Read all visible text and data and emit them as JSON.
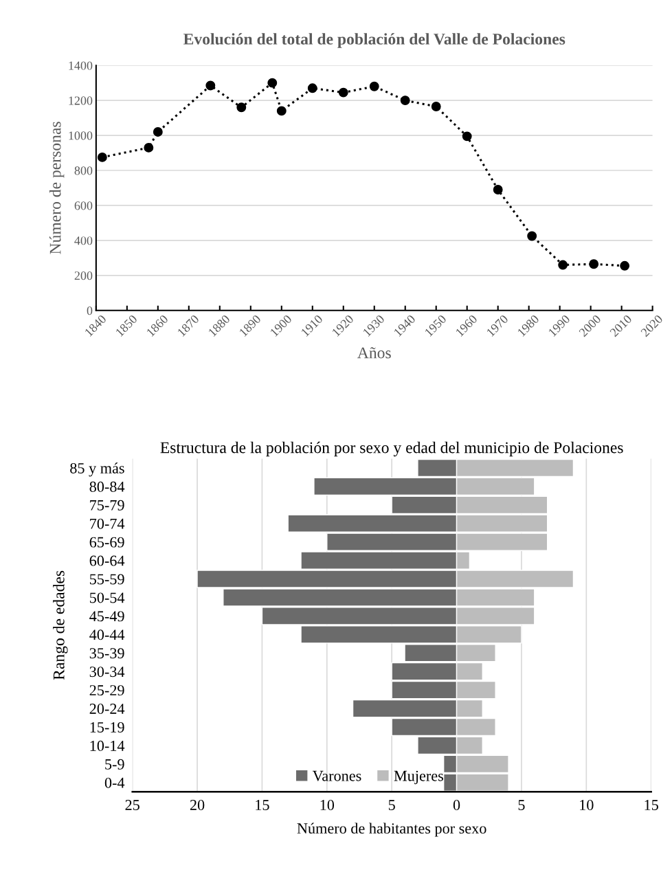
{
  "chart_data": [
    {
      "type": "line",
      "title": "Evolución del total de población del Valle de Polaciones",
      "xlabel": "Años",
      "ylabel": "Número de personas",
      "x": [
        1842,
        1857,
        1860,
        1877,
        1887,
        1897,
        1900,
        1910,
        1920,
        1930,
        1940,
        1950,
        1960,
        1970,
        1981,
        1991,
        2001,
        2011
      ],
      "series": [
        {
          "color": "#000000",
          "values": [
            875,
            930,
            1020,
            1285,
            1160,
            1300,
            1140,
            1270,
            1245,
            1280,
            1200,
            1165,
            995,
            690,
            425,
            260,
            265,
            255
          ]
        }
      ],
      "xlim": [
        1840,
        2020
      ],
      "xticks": [
        1840,
        1850,
        1860,
        1870,
        1880,
        1890,
        1900,
        1910,
        1920,
        1930,
        1940,
        1950,
        1960,
        1970,
        1980,
        1990,
        2000,
        2010,
        2020
      ],
      "ylim": [
        0,
        1400
      ],
      "yticks": [
        0,
        200,
        400,
        600,
        800,
        1000,
        1200,
        1400
      ],
      "grid": "y",
      "marker": "circle",
      "line_style": "dotted"
    },
    {
      "type": "bar",
      "orientation": "horizontal",
      "stacked": true,
      "title": "Estructura de la población por sexo y edad del municipio de Polaciones",
      "xlabel": "Número de habitantes por sexo",
      "ylabel": "Rango de edades",
      "categories": [
        "85 y más",
        "80-84",
        "75-79",
        "70-74",
        "65-69",
        "60-64",
        "55-59",
        "50-54",
        "45-49",
        "40-44",
        "35-39",
        "30-34",
        "25-29",
        "20-24",
        "15-19",
        "10-14",
        "5-9",
        "0-4"
      ],
      "series": [
        {
          "name": "Varones",
          "color": "#6b6b6b",
          "values": [
            -3,
            -11,
            -5,
            -13,
            -10,
            -12,
            -20,
            -18,
            -15,
            -12,
            -4,
            -5,
            -5,
            -8,
            -5,
            -3,
            -1,
            -1
          ]
        },
        {
          "name": "Mujeres",
          "color": "#bcbcbc",
          "values": [
            9,
            6,
            7,
            7,
            7,
            1,
            9,
            6,
            6,
            5,
            3,
            2,
            3,
            2,
            3,
            2,
            4,
            4
          ]
        }
      ],
      "xlim": [
        -25,
        15
      ],
      "xticks": [
        {
          "value": -25,
          "label": "25"
        },
        {
          "value": -20,
          "label": "20"
        },
        {
          "value": -15,
          "label": "15"
        },
        {
          "value": -10,
          "label": "10"
        },
        {
          "value": -5,
          "label": "5"
        },
        0,
        5,
        10,
        15
      ],
      "grid": "x",
      "legend": "bottom left"
    }
  ]
}
